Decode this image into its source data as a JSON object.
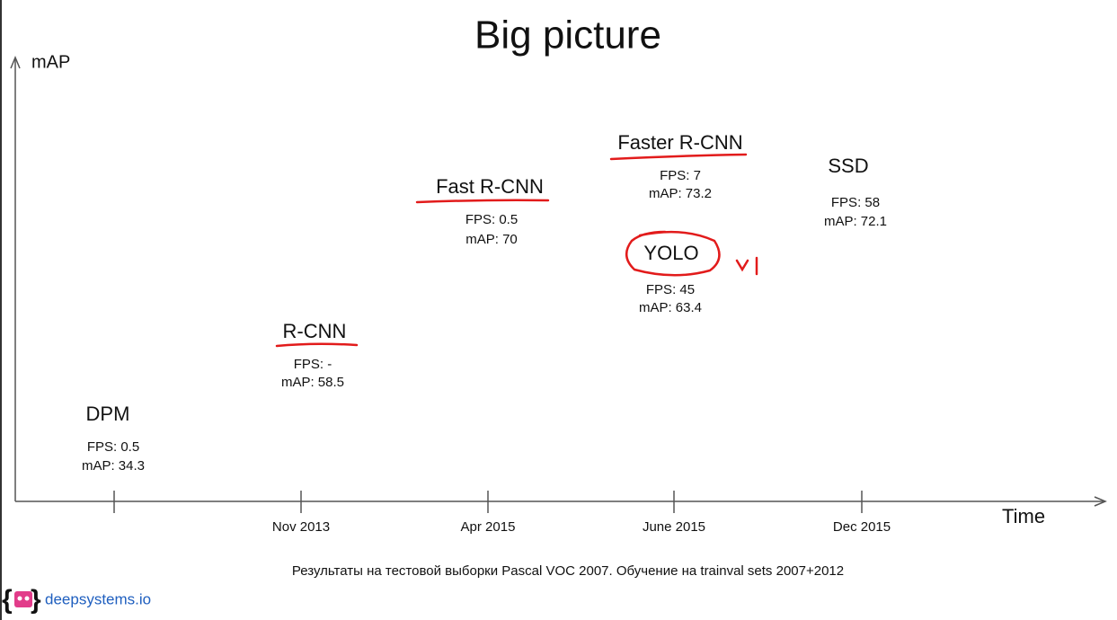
{
  "header": {
    "title": "Big picture"
  },
  "axes": {
    "y_label": "mAP",
    "x_label": "Time",
    "x_ticks": [
      "Nov 2013",
      "Apr 2015",
      "June 2015",
      "Dec 2015"
    ]
  },
  "models": [
    {
      "name": "DPM",
      "fps": "FPS: 0.5",
      "map": "mAP: 34.3"
    },
    {
      "name": "R-CNN",
      "fps": "FPS: -",
      "map": "mAP: 58.5"
    },
    {
      "name": "Fast R-CNN",
      "fps": "FPS: 0.5",
      "map": "mAP: 70"
    },
    {
      "name": "Faster R-CNN",
      "fps": "FPS: 7",
      "map": "mAP: 73.2"
    },
    {
      "name": "YOLO",
      "fps": "FPS: 45",
      "map": "mAP: 63.4"
    },
    {
      "name": "SSD",
      "fps": "FPS: 58",
      "map": "mAP: 72.1"
    }
  ],
  "footnote": "Результаты на тестовой выборки Pascal VOC 2007. Обучение на trainval sets 2007+2012",
  "logo": "deepsystems.io"
}
